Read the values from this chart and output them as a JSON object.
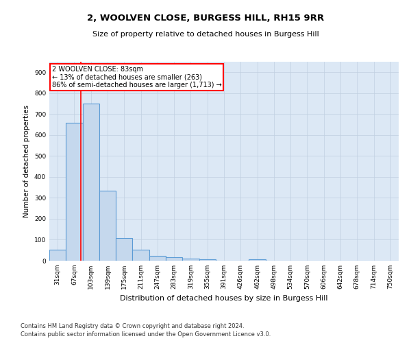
{
  "title": "2, WOOLVEN CLOSE, BURGESS HILL, RH15 9RR",
  "subtitle": "Size of property relative to detached houses in Burgess Hill",
  "xlabel": "Distribution of detached houses by size in Burgess Hill",
  "ylabel": "Number of detached properties",
  "footnote1": "Contains HM Land Registry data © Crown copyright and database right 2024.",
  "footnote2": "Contains public sector information licensed under the Open Government Licence v3.0.",
  "categories": [
    "31sqm",
    "67sqm",
    "103sqm",
    "139sqm",
    "175sqm",
    "211sqm",
    "247sqm",
    "283sqm",
    "319sqm",
    "355sqm",
    "391sqm",
    "426sqm",
    "462sqm",
    "498sqm",
    "534sqm",
    "570sqm",
    "606sqm",
    "642sqm",
    "678sqm",
    "714sqm",
    "750sqm"
  ],
  "bar_values": [
    52,
    660,
    750,
    335,
    107,
    52,
    22,
    16,
    11,
    8,
    0,
    0,
    8,
    0,
    0,
    0,
    0,
    0,
    0,
    0,
    0
  ],
  "bar_color": "#c5d8ed",
  "bar_edge_color": "#5b9bd5",
  "ylim": [
    0,
    950
  ],
  "yticks": [
    0,
    100,
    200,
    300,
    400,
    500,
    600,
    700,
    800,
    900
  ],
  "red_line_x": 1.38,
  "annotation_line1": "2 WOOLVEN CLOSE: 83sqm",
  "annotation_line2": "← 13% of detached houses are smaller (263)",
  "annotation_line3": "86% of semi-detached houses are larger (1,713) →",
  "background_color": "#ffffff",
  "grid_color": "#c0cfe0",
  "ax_facecolor": "#dce8f5",
  "title_fontsize": 9.5,
  "subtitle_fontsize": 8.0,
  "xlabel_fontsize": 8.0,
  "ylabel_fontsize": 7.5,
  "tick_fontsize": 6.5,
  "annot_fontsize": 7.0,
  "footnote_fontsize": 6.0
}
